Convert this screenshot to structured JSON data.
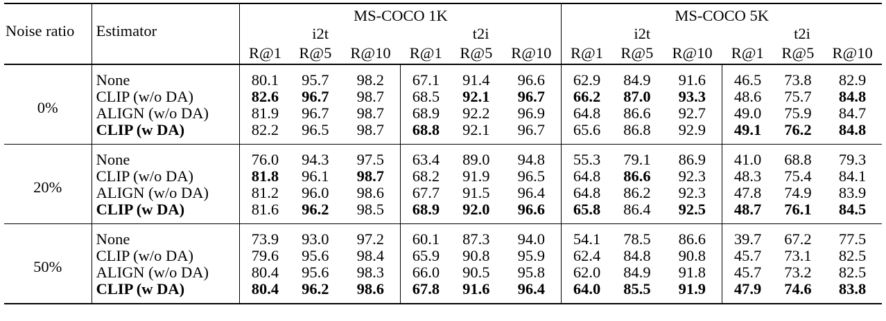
{
  "header": {
    "noise_ratio": "Noise ratio",
    "estimator": "Estimator",
    "datasets": [
      "MS-COCO 1K",
      "MS-COCO 5K"
    ],
    "directions": [
      "i2t",
      "t2i"
    ],
    "metrics": [
      "R@1",
      "R@5",
      "R@10"
    ]
  },
  "groups": [
    {
      "noise": "0%",
      "rows": [
        {
          "estimator": "None",
          "bold_label": false,
          "values": [
            "80.1",
            "95.7",
            "98.2",
            "67.1",
            "91.4",
            "96.6",
            "62.9",
            "84.9",
            "91.6",
            "46.5",
            "73.8",
            "82.9"
          ],
          "bold": [
            0,
            0,
            0,
            0,
            0,
            0,
            0,
            0,
            0,
            0,
            0,
            0
          ]
        },
        {
          "estimator": "CLIP (w/o DA)",
          "bold_label": false,
          "values": [
            "82.6",
            "96.7",
            "98.7",
            "68.5",
            "92.1",
            "96.7",
            "66.2",
            "87.0",
            "93.3",
            "48.6",
            "75.7",
            "84.8"
          ],
          "bold": [
            1,
            1,
            0,
            0,
            1,
            1,
            1,
            1,
            1,
            0,
            0,
            1
          ]
        },
        {
          "estimator": "ALIGN (w/o DA)",
          "bold_label": false,
          "values": [
            "81.9",
            "96.7",
            "98.7",
            "68.9",
            "92.2",
            "96.9",
            "64.8",
            "86.6",
            "92.7",
            "49.0",
            "75.9",
            "84.7"
          ],
          "bold": [
            0,
            0,
            0,
            0,
            0,
            0,
            0,
            0,
            0,
            0,
            0,
            0
          ]
        },
        {
          "estimator": "CLIP (w DA)",
          "bold_label": true,
          "values": [
            "82.2",
            "96.5",
            "98.7",
            "68.8",
            "92.1",
            "96.7",
            "65.6",
            "86.8",
            "92.9",
            "49.1",
            "76.2",
            "84.8"
          ],
          "bold": [
            0,
            0,
            0,
            1,
            0,
            0,
            0,
            0,
            0,
            1,
            1,
            1
          ]
        }
      ]
    },
    {
      "noise": "20%",
      "rows": [
        {
          "estimator": "None",
          "bold_label": false,
          "values": [
            "76.0",
            "94.3",
            "97.5",
            "63.4",
            "89.0",
            "94.8",
            "55.3",
            "79.1",
            "86.9",
            "41.0",
            "68.8",
            "79.3"
          ],
          "bold": [
            0,
            0,
            0,
            0,
            0,
            0,
            0,
            0,
            0,
            0,
            0,
            0
          ]
        },
        {
          "estimator": "CLIP (w/o DA)",
          "bold_label": false,
          "values": [
            "81.8",
            "96.1",
            "98.7",
            "68.2",
            "91.9",
            "96.5",
            "64.8",
            "86.6",
            "92.3",
            "48.3",
            "75.4",
            "84.1"
          ],
          "bold": [
            1,
            0,
            1,
            0,
            0,
            0,
            0,
            1,
            0,
            0,
            0,
            0
          ]
        },
        {
          "estimator": "ALIGN (w/o DA)",
          "bold_label": false,
          "values": [
            "81.2",
            "96.0",
            "98.6",
            "67.7",
            "91.5",
            "96.4",
            "64.8",
            "86.2",
            "92.3",
            "47.8",
            "74.9",
            "83.9"
          ],
          "bold": [
            0,
            0,
            0,
            0,
            0,
            0,
            0,
            0,
            0,
            0,
            0,
            0
          ]
        },
        {
          "estimator": "CLIP (w DA)",
          "bold_label": true,
          "values": [
            "81.6",
            "96.2",
            "98.5",
            "68.9",
            "92.0",
            "96.6",
            "65.8",
            "86.4",
            "92.5",
            "48.7",
            "76.1",
            "84.5"
          ],
          "bold": [
            0,
            1,
            0,
            1,
            1,
            1,
            1,
            0,
            1,
            1,
            1,
            1
          ]
        }
      ]
    },
    {
      "noise": "50%",
      "rows": [
        {
          "estimator": "None",
          "bold_label": false,
          "values": [
            "73.9",
            "93.0",
            "97.2",
            "60.1",
            "87.3",
            "94.0",
            "54.1",
            "78.5",
            "86.6",
            "39.7",
            "67.2",
            "77.5"
          ],
          "bold": [
            0,
            0,
            0,
            0,
            0,
            0,
            0,
            0,
            0,
            0,
            0,
            0
          ]
        },
        {
          "estimator": "CLIP (w/o DA)",
          "bold_label": false,
          "values": [
            "79.6",
            "95.6",
            "98.4",
            "65.9",
            "90.8",
            "95.9",
            "62.4",
            "84.8",
            "90.8",
            "45.7",
            "73.1",
            "82.5"
          ],
          "bold": [
            0,
            0,
            0,
            0,
            0,
            0,
            0,
            0,
            0,
            0,
            0,
            0
          ]
        },
        {
          "estimator": "ALIGN (w/o DA)",
          "bold_label": false,
          "values": [
            "80.4",
            "95.6",
            "98.3",
            "66.0",
            "90.5",
            "95.8",
            "62.0",
            "84.9",
            "91.8",
            "45.7",
            "73.2",
            "82.5"
          ],
          "bold": [
            0,
            0,
            0,
            0,
            0,
            0,
            0,
            0,
            0,
            0,
            0,
            0
          ]
        },
        {
          "estimator": "CLIP (w DA)",
          "bold_label": true,
          "values": [
            "80.4",
            "96.2",
            "98.6",
            "67.8",
            "91.6",
            "96.4",
            "64.0",
            "85.5",
            "91.9",
            "47.9",
            "74.6",
            "83.8"
          ],
          "bold": [
            1,
            1,
            1,
            1,
            1,
            1,
            1,
            1,
            1,
            1,
            1,
            1
          ]
        }
      ]
    }
  ]
}
